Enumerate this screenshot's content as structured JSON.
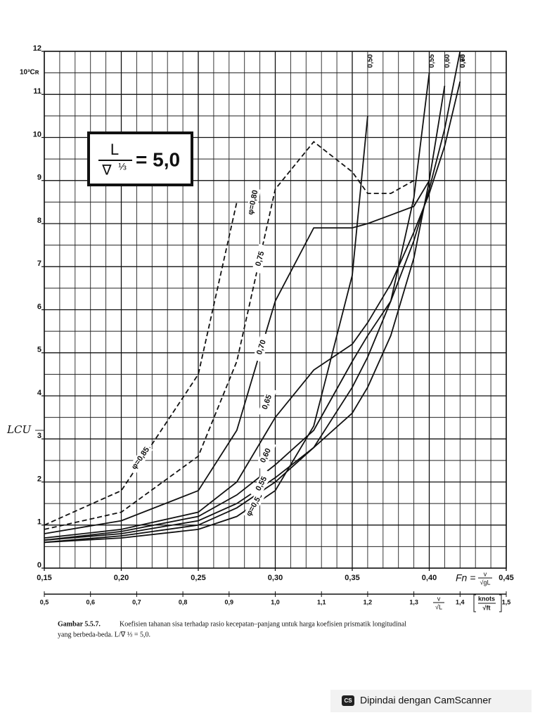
{
  "chart_data": {
    "type": "line",
    "y_label": "10³Cʀ",
    "x": [
      0.15,
      0.2,
      0.25,
      0.275,
      0.3,
      0.325,
      0.35,
      0.36,
      0.375,
      0.39,
      0.4,
      0.41,
      0.42
    ],
    "series": [
      {
        "name": "0,50",
        "label": "φ=0,50",
        "color": "#111111",
        "values": [
          0.6,
          0.7,
          0.9,
          1.2,
          1.8,
          3.3,
          6.8,
          10.5,
          null,
          null,
          null,
          null,
          null
        ]
      },
      {
        "name": "0,55",
        "label": "0,55",
        "color": "#111111",
        "values": [
          0.6,
          0.75,
          1.0,
          1.4,
          2.0,
          2.8,
          4.2,
          4.9,
          6.2,
          8.6,
          11.5,
          null,
          null
        ]
      },
      {
        "name": "0,60",
        "label": "0,60",
        "color": "#111111",
        "values": [
          0.65,
          0.8,
          1.1,
          1.5,
          2.1,
          2.8,
          3.6,
          4.2,
          5.4,
          7.2,
          9.0,
          11.2,
          null
        ]
      },
      {
        "name": "0,65",
        "label": "0,65",
        "color": "#111111",
        "values": [
          0.65,
          0.85,
          1.2,
          1.7,
          2.4,
          3.2,
          4.8,
          5.4,
          6.2,
          7.6,
          8.8,
          10.2,
          12.0
        ]
      },
      {
        "name": "0,70",
        "label": "0,70",
        "color": "#111111",
        "values": [
          0.7,
          0.9,
          1.3,
          2.0,
          3.5,
          4.6,
          5.2,
          5.7,
          6.6,
          7.8,
          8.7,
          9.8,
          11.3
        ]
      },
      {
        "label": "0,75",
        "color": "#111111",
        "values": [
          0.8,
          1.1,
          1.8,
          3.2,
          6.2,
          7.9,
          7.9,
          8.0,
          8.2,
          8.4,
          9.0,
          null,
          null
        ]
      },
      {
        "label": "φ=0,80",
        "color": "#111111",
        "dashed": true,
        "values": [
          0.9,
          1.3,
          2.6,
          4.8,
          8.8,
          9.9,
          9.2,
          8.7,
          8.7,
          9.0,
          null,
          null,
          null
        ]
      },
      {
        "label": "φ=0,85",
        "color": "#111111",
        "dashed": true,
        "values": [
          1.0,
          1.8,
          4.5,
          8.5,
          null,
          null,
          null,
          null,
          null,
          null,
          null,
          null,
          null
        ]
      }
    ],
    "xlim": [
      0.15,
      0.45
    ],
    "xticks": [
      {
        "value": 0.15,
        "label": "0,15"
      },
      {
        "value": 0.2,
        "label": "0,20"
      },
      {
        "value": 0.25,
        "label": "0,25"
      },
      {
        "value": 0.3,
        "label": "0,30"
      },
      {
        "value": 0.35,
        "label": "0,35"
      },
      {
        "value": 0.4,
        "label": "0,40"
      },
      {
        "value": 0.45,
        "label": "0,45"
      }
    ],
    "ylim": [
      0,
      12
    ],
    "yticks": [
      0,
      1,
      2,
      3,
      4,
      5,
      6,
      7,
      8,
      9,
      10,
      11,
      12
    ],
    "x2lim": [
      0.5,
      1.5
    ],
    "x2ticks": [
      {
        "value": 0.5,
        "label": "0,5"
      },
      {
        "value": 0.6,
        "label": "0,6"
      },
      {
        "value": 0.7,
        "label": "0,7"
      },
      {
        "value": 0.8,
        "label": "0,8"
      },
      {
        "value": 0.9,
        "label": "0,9"
      },
      {
        "value": 1.0,
        "label": "1,0"
      },
      {
        "value": 1.1,
        "label": "1,1"
      },
      {
        "value": 1.2,
        "label": "1,2"
      },
      {
        "value": 1.3,
        "label": "1,3"
      },
      {
        "value": 1.4,
        "label": "1,4"
      },
      {
        "value": 1.5,
        "label": "1,5"
      }
    ],
    "grid": true,
    "xminor": 0.01,
    "yminor": 0.5,
    "fn_label": {
      "symbol": "Fn =",
      "numerator": "v",
      "denominator": "√gL"
    },
    "v_label": {
      "numerator": "v",
      "denominator": "√L",
      "unit_numerator": "knots",
      "unit_denominator": "√ft"
    },
    "annotation": {
      "numerator": "L",
      "denominator": "∇",
      "exponent": "⅓",
      "value": "= 5,0"
    },
    "handwritten": "LCU"
  },
  "caption": {
    "label": "Gambar 5.5.7.",
    "line1": "Koefisien tahanan sisa terhadap rasio kecepatan–panjang untuk harga koefisien prismatik longitudinal",
    "line2": "yang berbeda-beda. L/∇ ⅓ = 5,0."
  },
  "watermark": {
    "icon": "CS",
    "text": "Dipindai dengan CamScanner"
  }
}
